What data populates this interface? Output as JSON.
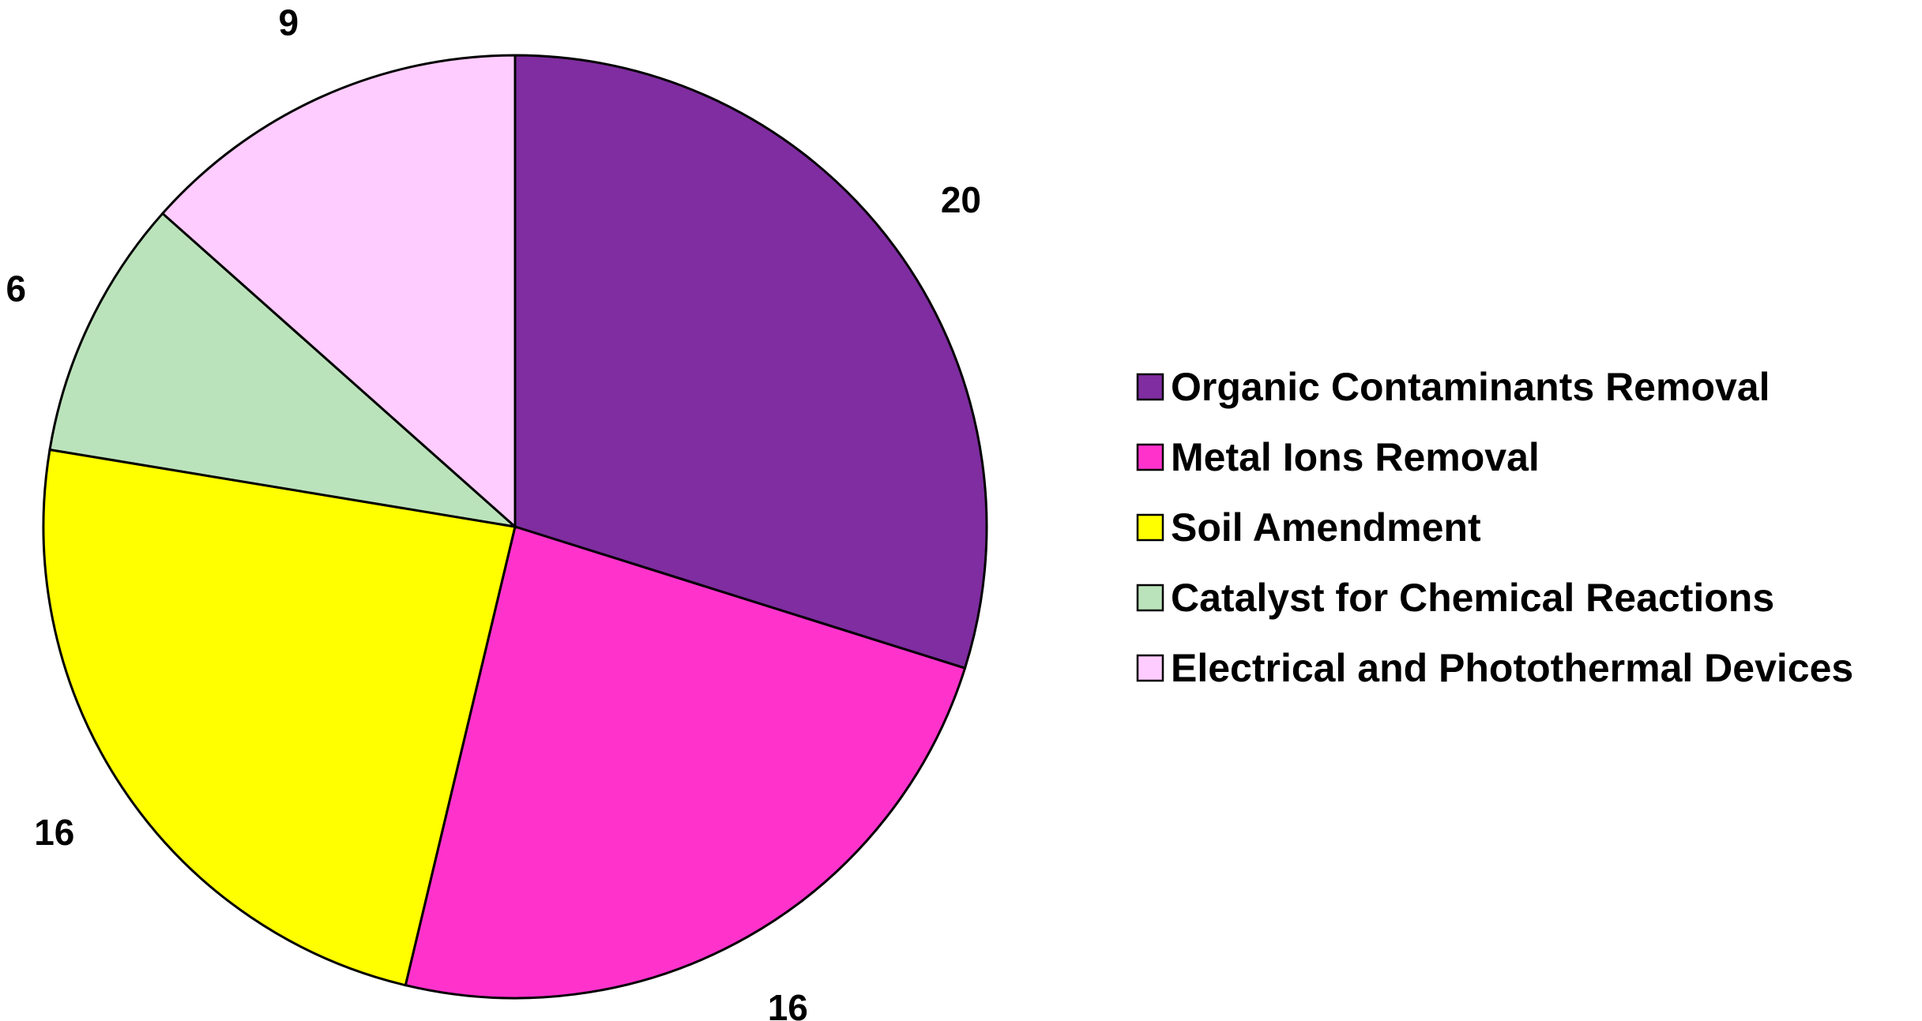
{
  "chart_data": {
    "type": "pie",
    "title": "",
    "start_angle_deg": 0,
    "direction": "clockwise",
    "legend_position": "right",
    "slices": [
      {
        "label": "Organic Contaminants Removal",
        "value": 20,
        "data_label": "20",
        "color": "#7F2DA0"
      },
      {
        "label": "Metal Ions Removal",
        "value": 16,
        "data_label": "16",
        "color": "#FF33CC"
      },
      {
        "label": "Soil Amendment",
        "value": 16,
        "data_label": "16",
        "color": "#FFFF00"
      },
      {
        "label": "Catalyst for Chemical Reactions",
        "value": 6,
        "data_label": "6",
        "color": "#BBE3BB"
      },
      {
        "label": "Electrical and Photothermal Devices",
        "value": 9,
        "data_label": "9",
        "color": "#FFCCFF"
      }
    ]
  }
}
